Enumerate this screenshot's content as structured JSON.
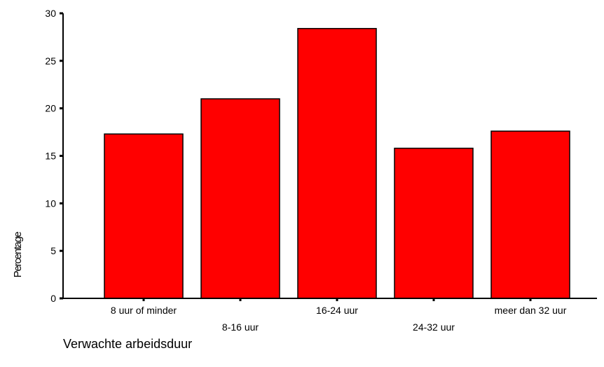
{
  "chart_data": {
    "type": "bar",
    "title": "",
    "xlabel": "Verwachte arbeidsduur",
    "ylabel": "Percentage",
    "categories": [
      "8 uur of minder",
      "8-16 uur",
      "16-24 uur",
      "24-32 uur",
      "meer dan 32 uur"
    ],
    "values": [
      17.3,
      21.0,
      28.4,
      15.8,
      17.6
    ],
    "ylim": [
      0,
      30
    ],
    "yticks": [
      "0",
      "5",
      "10",
      "15",
      "20",
      "25",
      "30"
    ],
    "bar_color": "#ff0000",
    "grid": false,
    "legend": "none"
  }
}
